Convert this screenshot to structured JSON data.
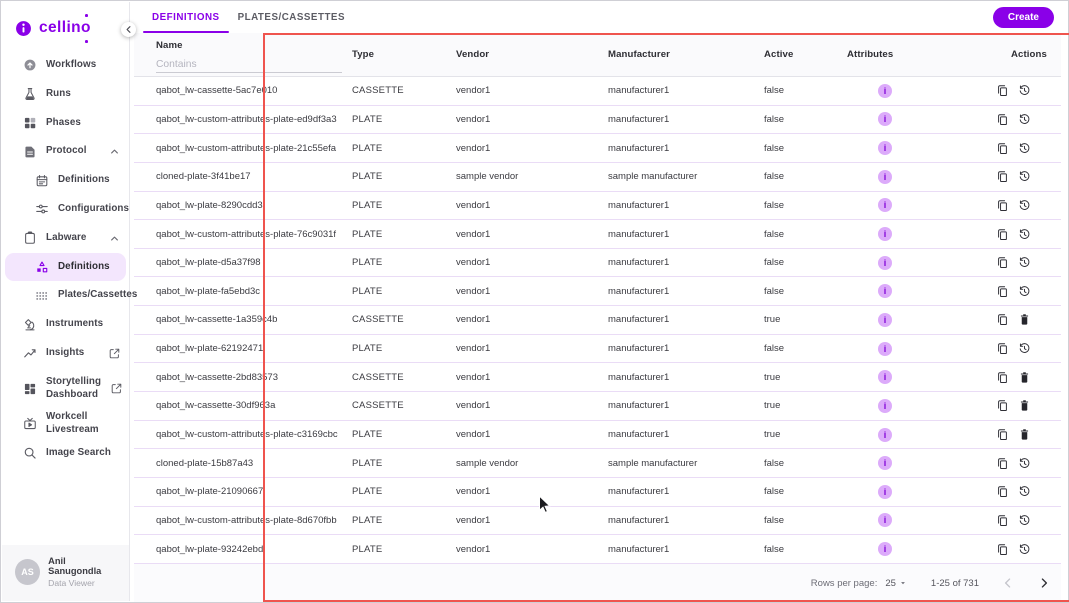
{
  "colors": {
    "accent": "#8A00E8",
    "annotation": "#EF544E"
  },
  "brand": {
    "name": "cellino",
    "logo_icon": "info-logo-icon"
  },
  "sidebar": {
    "items": [
      {
        "label": "Workflows",
        "icon": "workflows-icon"
      },
      {
        "label": "Runs",
        "icon": "runs-flask-icon"
      },
      {
        "label": "Phases",
        "icon": "phases-icon"
      },
      {
        "label": "Protocol",
        "icon": "protocol-document-icon",
        "expanded": true
      },
      {
        "label": "Definitions",
        "icon": "calendar-icon",
        "child": true
      },
      {
        "label": "Configurations",
        "icon": "sliders-icon",
        "child": true
      },
      {
        "label": "Labware",
        "icon": "clipboard-icon",
        "expanded": true
      },
      {
        "label": "Definitions",
        "icon": "nodes-icon",
        "child": true,
        "active": true
      },
      {
        "label": "Plates/Cassettes",
        "icon": "well-grid-icon",
        "child": true
      },
      {
        "label": "Instruments",
        "icon": "microscope-icon"
      },
      {
        "label": "Insights",
        "icon": "trend-chart-icon",
        "external": true
      },
      {
        "label": "Storytelling Dashboard",
        "icon": "dashboard-icon",
        "external": true,
        "two_line": true
      },
      {
        "label": "Workcell Livestream",
        "icon": "livestream-tv-icon"
      },
      {
        "label": "Image Search",
        "icon": "search-icon"
      }
    ],
    "user": {
      "initials": "AS",
      "name": "Anil Sanugondla",
      "role": "Data Viewer"
    }
  },
  "tabs": [
    {
      "label": "DEFINITIONS",
      "active": true
    },
    {
      "label": "PLATES/CASSETTES",
      "active": false
    }
  ],
  "toolbar": {
    "create_label": "Create"
  },
  "table": {
    "columns": [
      "Name",
      "Type",
      "Vendor",
      "Manufacturer",
      "Active",
      "Attributes",
      "Actions"
    ],
    "name_filter_placeholder": "Contains",
    "attributes_icon": "info-icon",
    "rows": [
      {
        "name": "qabot_lw-cassette-5ac7e010",
        "type": "CASSETTE",
        "vendor": "vendor1",
        "manufacturer": "manufacturer1",
        "active": "false",
        "actions": [
          "copy-icon",
          "restore-icon"
        ]
      },
      {
        "name": "qabot_lw-custom-attributes-plate-ed9df3a3",
        "type": "PLATE",
        "vendor": "vendor1",
        "manufacturer": "manufacturer1",
        "active": "false",
        "actions": [
          "copy-icon",
          "restore-icon"
        ]
      },
      {
        "name": "qabot_lw-custom-attributes-plate-21c55efa",
        "type": "PLATE",
        "vendor": "vendor1",
        "manufacturer": "manufacturer1",
        "active": "false",
        "actions": [
          "copy-icon",
          "restore-icon"
        ]
      },
      {
        "name": "cloned-plate-3f41be17",
        "type": "PLATE",
        "vendor": "sample vendor",
        "manufacturer": "sample manufacturer",
        "active": "false",
        "actions": [
          "copy-icon",
          "restore-icon"
        ]
      },
      {
        "name": "qabot_lw-plate-8290cdd3",
        "type": "PLATE",
        "vendor": "vendor1",
        "manufacturer": "manufacturer1",
        "active": "false",
        "actions": [
          "copy-icon",
          "restore-icon"
        ]
      },
      {
        "name": "qabot_lw-custom-attributes-plate-76c9031f",
        "type": "PLATE",
        "vendor": "vendor1",
        "manufacturer": "manufacturer1",
        "active": "false",
        "actions": [
          "copy-icon",
          "restore-icon"
        ]
      },
      {
        "name": "qabot_lw-plate-d5a37f98",
        "type": "PLATE",
        "vendor": "vendor1",
        "manufacturer": "manufacturer1",
        "active": "false",
        "actions": [
          "copy-icon",
          "restore-icon"
        ]
      },
      {
        "name": "qabot_lw-plate-fa5ebd3c",
        "type": "PLATE",
        "vendor": "vendor1",
        "manufacturer": "manufacturer1",
        "active": "false",
        "actions": [
          "copy-icon",
          "restore-icon"
        ]
      },
      {
        "name": "qabot_lw-cassette-1a359c4b",
        "type": "CASSETTE",
        "vendor": "vendor1",
        "manufacturer": "manufacturer1",
        "active": "true",
        "actions": [
          "copy-icon",
          "delete-icon"
        ]
      },
      {
        "name": "qabot_lw-plate-62192471",
        "type": "PLATE",
        "vendor": "vendor1",
        "manufacturer": "manufacturer1",
        "active": "false",
        "actions": [
          "copy-icon",
          "restore-icon"
        ]
      },
      {
        "name": "qabot_lw-cassette-2bd83573",
        "type": "CASSETTE",
        "vendor": "vendor1",
        "manufacturer": "manufacturer1",
        "active": "true",
        "actions": [
          "copy-icon",
          "delete-icon"
        ]
      },
      {
        "name": "qabot_lw-cassette-30df963a",
        "type": "CASSETTE",
        "vendor": "vendor1",
        "manufacturer": "manufacturer1",
        "active": "true",
        "actions": [
          "copy-icon",
          "delete-icon"
        ]
      },
      {
        "name": "qabot_lw-custom-attributes-plate-c3169cbc",
        "type": "PLATE",
        "vendor": "vendor1",
        "manufacturer": "manufacturer1",
        "active": "true",
        "actions": [
          "copy-icon",
          "delete-icon"
        ]
      },
      {
        "name": "cloned-plate-15b87a43",
        "type": "PLATE",
        "vendor": "sample vendor",
        "manufacturer": "sample manufacturer",
        "active": "false",
        "actions": [
          "copy-icon",
          "restore-icon"
        ]
      },
      {
        "name": "qabot_lw-plate-21090667",
        "type": "PLATE",
        "vendor": "vendor1",
        "manufacturer": "manufacturer1",
        "active": "false",
        "actions": [
          "copy-icon",
          "restore-icon"
        ]
      },
      {
        "name": "qabot_lw-custom-attributes-plate-8d670fbb",
        "type": "PLATE",
        "vendor": "vendor1",
        "manufacturer": "manufacturer1",
        "active": "false",
        "actions": [
          "copy-icon",
          "restore-icon"
        ]
      },
      {
        "name": "qabot_lw-plate-93242ebd",
        "type": "PLATE",
        "vendor": "vendor1",
        "manufacturer": "manufacturer1",
        "active": "false",
        "actions": [
          "copy-icon",
          "restore-icon"
        ]
      }
    ]
  },
  "footer": {
    "rows_per_page_label": "Rows per page:",
    "rows_per_page_value": "25",
    "range_label": "1-25 of 731"
  }
}
